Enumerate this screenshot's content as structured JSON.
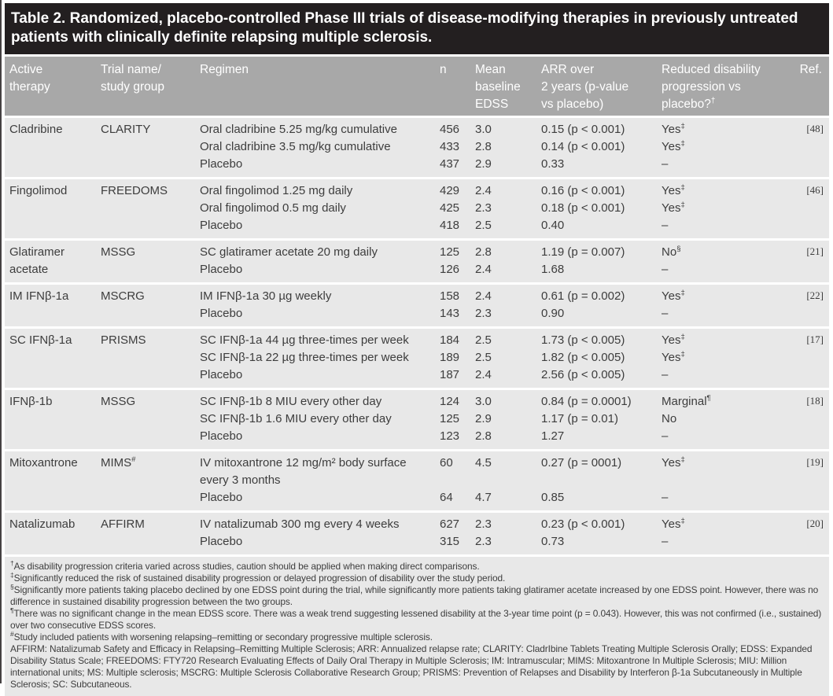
{
  "title": "Table 2. Randomized, placebo-controlled Phase III trials of disease-modifying therapies in previously untreated patients with clinically definite relapsing multiple sclerosis.",
  "colors": {
    "title_bar": "#231f20",
    "header_bar": "#a8a8a8",
    "row_background": "#e8e8e8",
    "body_text": "#3d3d3d"
  },
  "columns": [
    {
      "key": "active-therapy",
      "label": "Active\ntherapy",
      "sup": ""
    },
    {
      "key": "trial-name",
      "label": "Trial name/\nstudy group",
      "sup": ""
    },
    {
      "key": "regimen",
      "label": "Regimen",
      "sup": ""
    },
    {
      "key": "n",
      "label": "n",
      "sup": ""
    },
    {
      "key": "mean-baseline-edss",
      "label": "Mean\nbaseline\nEDSS",
      "sup": ""
    },
    {
      "key": "arr",
      "label": "ARR over\n2 years (p-value\nvs placebo)",
      "sup": ""
    },
    {
      "key": "reduced-disability",
      "label": "Reduced disability\nprogression vs\nplacebo?",
      "sup": "†"
    },
    {
      "key": "ref",
      "label": "Ref.",
      "sup": ""
    }
  ],
  "groups": [
    {
      "therapy": "Cladribine",
      "trial": "CLARITY",
      "trial_sup": "",
      "ref": "[48]",
      "arms": [
        {
          "regimen": "Oral cladribine 5.25 mg/kg cumulative",
          "n": "456",
          "edss": "3.0",
          "arr": "0.15 (p < 0.001)",
          "reduced": "Yes",
          "reduced_sup": "‡"
        },
        {
          "regimen": "Oral cladribine 3.5 mg/kg cumulative",
          "n": "433",
          "edss": "2.8",
          "arr": "0.14 (p < 0.001)",
          "reduced": "Yes",
          "reduced_sup": "‡"
        },
        {
          "regimen": "Placebo",
          "n": "437",
          "edss": "2.9",
          "arr": "0.33",
          "reduced": "–",
          "reduced_sup": ""
        }
      ]
    },
    {
      "therapy": "Fingolimod",
      "trial": "FREEDOMS",
      "trial_sup": "",
      "ref": "[46]",
      "arms": [
        {
          "regimen": "Oral fingolimod 1.25 mg daily",
          "n": "429",
          "edss": "2.4",
          "arr": "0.16 (p < 0.001)",
          "reduced": "Yes",
          "reduced_sup": "‡"
        },
        {
          "regimen": "Oral fingolimod 0.5 mg daily",
          "n": "425",
          "edss": "2.3",
          "arr": "0.18 (p < 0.001)",
          "reduced": "Yes",
          "reduced_sup": "‡"
        },
        {
          "regimen": "Placebo",
          "n": "418",
          "edss": "2.5",
          "arr": "0.40",
          "reduced": "–",
          "reduced_sup": ""
        }
      ]
    },
    {
      "therapy": "Glatiramer acetate",
      "trial": "MSSG",
      "trial_sup": "",
      "ref": "[21]",
      "arms": [
        {
          "regimen": "SC glatiramer acetate 20 mg daily",
          "n": "125",
          "edss": "2.8",
          "arr": "1.19 (p = 0.007)",
          "reduced": "No",
          "reduced_sup": "§"
        },
        {
          "regimen": "Placebo",
          "n": "126",
          "edss": "2.4",
          "arr": "1.68",
          "reduced": "–",
          "reduced_sup": ""
        }
      ]
    },
    {
      "therapy": "IM IFNβ-1a",
      "trial": "MSCRG",
      "trial_sup": "",
      "ref": "[22]",
      "arms": [
        {
          "regimen": "IM IFNβ-1a 30 µg weekly",
          "n": "158",
          "edss": "2.4",
          "arr": "0.61 (p = 0.002)",
          "reduced": "Yes",
          "reduced_sup": "‡"
        },
        {
          "regimen": "Placebo",
          "n": "143",
          "edss": "2.3",
          "arr": "0.90",
          "reduced": "–",
          "reduced_sup": ""
        }
      ]
    },
    {
      "therapy": "SC IFNβ-1a",
      "trial": "PRISMS",
      "trial_sup": "",
      "ref": "[17]",
      "arms": [
        {
          "regimen": "SC IFNβ-1a 44 µg three-times per week",
          "n": "184",
          "edss": "2.5",
          "arr": "1.73 (p < 0.005)",
          "reduced": "Yes",
          "reduced_sup": "‡"
        },
        {
          "regimen": "SC IFNβ-1a 22 µg three-times per week",
          "n": "189",
          "edss": "2.5",
          "arr": "1.82 (p < 0.005)",
          "reduced": "Yes",
          "reduced_sup": "‡"
        },
        {
          "regimen": "Placebo",
          "n": "187",
          "edss": "2.4",
          "arr": "2.56 (p < 0.005)",
          "reduced": "–",
          "reduced_sup": ""
        }
      ]
    },
    {
      "therapy": "IFNβ-1b",
      "trial": "MSSG",
      "trial_sup": "",
      "ref": "[18]",
      "arms": [
        {
          "regimen": "SC IFNβ-1b 8 MIU every other day",
          "n": "124",
          "edss": "3.0",
          "arr": "0.84 (p = 0.0001)",
          "reduced": "Marginal",
          "reduced_sup": "¶"
        },
        {
          "regimen": "SC IFNβ-1b 1.6 MIU every other day",
          "n": "125",
          "edss": "2.9",
          "arr": "1.17 (p = 0.01)",
          "reduced": "No",
          "reduced_sup": ""
        },
        {
          "regimen": "Placebo",
          "n": "123",
          "edss": "2.8",
          "arr": "1.27",
          "reduced": "–",
          "reduced_sup": ""
        }
      ]
    },
    {
      "therapy": "Mitoxantrone",
      "trial": "MIMS",
      "trial_sup": "#",
      "ref": "[19]",
      "arms": [
        {
          "regimen": "IV mitoxantrone 12 mg/m² body surface every 3 months",
          "n": "60",
          "edss": "4.5",
          "arr": "0.27 (p = 0001)",
          "reduced": "Yes",
          "reduced_sup": "‡"
        },
        {
          "regimen": "Placebo",
          "n": "64",
          "edss": "4.7",
          "arr": "0.85",
          "reduced": "–",
          "reduced_sup": ""
        }
      ]
    },
    {
      "therapy": "Natalizumab",
      "trial": "AFFIRM",
      "trial_sup": "",
      "ref": "[20]",
      "arms": [
        {
          "regimen": "IV natalizumab 300 mg every 4 weeks",
          "n": "627",
          "edss": "2.3",
          "arr": "0.23 (p < 0.001)",
          "reduced": "Yes",
          "reduced_sup": "‡"
        },
        {
          "regimen": "Placebo",
          "n": "315",
          "edss": "2.3",
          "arr": "0.73",
          "reduced": "–",
          "reduced_sup": ""
        }
      ]
    }
  ],
  "footnotes": [
    {
      "marker": "†",
      "text": "As disability progression criteria varied across studies, caution should be applied when making direct comparisons."
    },
    {
      "marker": "‡",
      "text": "Significantly reduced the risk of sustained disability progression or delayed progression of disability over the study period."
    },
    {
      "marker": "§",
      "text": "Significantly more patients taking placebo declined by one EDSS point during the trial, while significantly more patients taking glatiramer acetate increased by one EDSS point. However, there was no difference in sustained disability progression between the two groups."
    },
    {
      "marker": "¶",
      "text": "There was no significant change in the mean EDSS score. There was a weak trend suggesting lessened disability at the 3-year time point (p = 0.043). However, this was not confirmed (i.e., sustained) over two consecutive EDSS scores."
    },
    {
      "marker": "#",
      "text": "Study included patients with worsening relapsing–remitting or secondary progressive multiple sclerosis."
    },
    {
      "marker": "",
      "text": "AFFIRM: Natalizumab Safety and Efficacy in Relapsing–Remitting Multiple Sclerosis; ARR: Annualized relapse rate; CLARITY: CladrIbine Tablets Treating Multiple Sclerosis Orally; EDSS: Expanded Disability Status Scale; FREEDOMS: FTY720 Research Evaluating Effects of Daily Oral Therapy in Multiple Sclerosis; IM: Intramuscular; MIMS: Mitoxantrone In Multiple Sclerosis; MIU: Million international units; MS: Multiple sclerosis; MSCRG: Multiple Sclerosis Collaborative Research Group; PRISMS: Prevention of Relapses and Disability by Interferon β-1a Subcutaneously in Multiple Sclerosis; SC: Subcutaneous."
    }
  ]
}
